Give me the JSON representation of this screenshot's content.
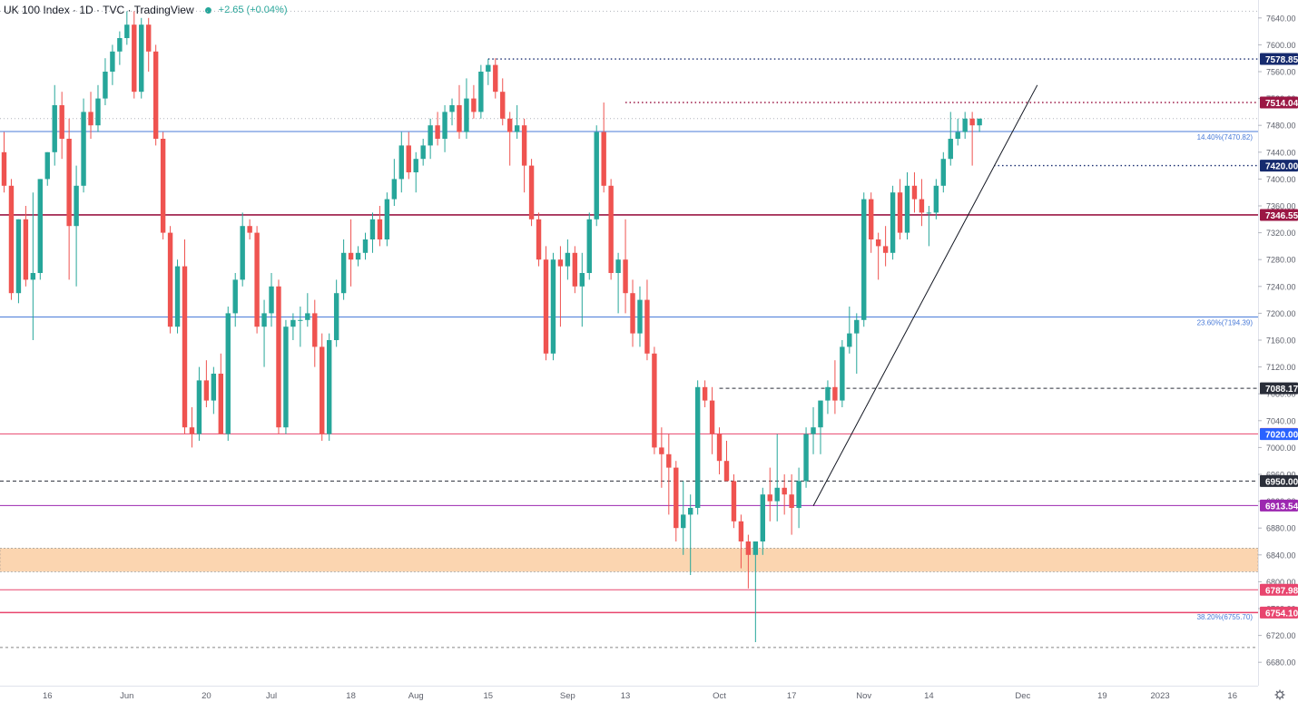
{
  "header": {
    "title": "UK 100 Index · 1D · TVC · TradingView",
    "change": "+2.65 (+0.04%)"
  },
  "colors": {
    "up": "#26a69a",
    "down": "#ef5350",
    "fib": "#4a7bd8",
    "crimson": "#9b1744",
    "navy": "#162b6e",
    "dark": "#2a2e39",
    "pink": "#e8456e",
    "blue_label": "#2962ff",
    "purple": "#9c27b0",
    "orange_zone": "#fbd5b0"
  },
  "chart_data": {
    "type": "candlestick",
    "title": "UK 100 Index · 1D · TVC · TradingView",
    "ylim": [
      6660,
      7660
    ],
    "y_ticks": [
      "7640.00",
      "7600.00",
      "7560.00",
      "7520.00",
      "7480.00",
      "7440.00",
      "7400.00",
      "7360.00",
      "7320.00",
      "7280.00",
      "7240.00",
      "7200.00",
      "7160.00",
      "7120.00",
      "7080.00",
      "7040.00",
      "7000.00",
      "6960.00",
      "6920.00",
      "6880.00",
      "6840.00",
      "6800.00",
      "6760.00",
      "6720.00",
      "6680.00"
    ],
    "x_ticks": [
      {
        "label": "16",
        "i": 6
      },
      {
        "label": "Jun",
        "i": 17
      },
      {
        "label": "20",
        "i": 28
      },
      {
        "label": "Jul",
        "i": 37
      },
      {
        "label": "18",
        "i": 48
      },
      {
        "label": "Aug",
        "i": 57
      },
      {
        "label": "15",
        "i": 67
      },
      {
        "label": "Sep",
        "i": 78
      },
      {
        "label": "13",
        "i": 86
      },
      {
        "label": "Oct",
        "i": 99
      },
      {
        "label": "17",
        "i": 109
      },
      {
        "label": "Nov",
        "i": 119
      },
      {
        "label": "14",
        "i": 128
      },
      {
        "label": "Dec",
        "i": 141
      },
      {
        "label": "19",
        "i": 152
      },
      {
        "label": "2023",
        "i": 160
      },
      {
        "label": "16",
        "i": 170
      }
    ],
    "candles": [
      [
        7440,
        7470,
        7380,
        7390
      ],
      [
        7390,
        7400,
        7220,
        7230
      ],
      [
        7230,
        7340,
        7215,
        7340
      ],
      [
        7340,
        7360,
        7240,
        7250
      ],
      [
        7250,
        7380,
        7160,
        7260
      ],
      [
        7260,
        7400,
        7250,
        7400
      ],
      [
        7400,
        7440,
        7390,
        7440
      ],
      [
        7440,
        7540,
        7420,
        7510
      ],
      [
        7510,
        7530,
        7430,
        7460
      ],
      [
        7460,
        7490,
        7250,
        7330
      ],
      [
        7330,
        7420,
        7240,
        7390
      ],
      [
        7390,
        7520,
        7380,
        7500
      ],
      [
        7500,
        7530,
        7460,
        7480
      ],
      [
        7480,
        7540,
        7470,
        7520
      ],
      [
        7520,
        7580,
        7510,
        7560
      ],
      [
        7560,
        7600,
        7540,
        7590
      ],
      [
        7590,
        7620,
        7570,
        7610
      ],
      [
        7610,
        7650,
        7600,
        7630
      ],
      [
        7630,
        7650,
        7520,
        7530
      ],
      [
        7530,
        7640,
        7520,
        7630
      ],
      [
        7630,
        7640,
        7560,
        7590
      ],
      [
        7590,
        7600,
        7450,
        7460
      ],
      [
        7460,
        7470,
        7310,
        7320
      ],
      [
        7320,
        7330,
        7170,
        7180
      ],
      [
        7180,
        7280,
        7170,
        7270
      ],
      [
        7270,
        7310,
        7020,
        7030
      ],
      [
        7030,
        7060,
        7000,
        7020
      ],
      [
        7020,
        7120,
        7010,
        7100
      ],
      [
        7100,
        7130,
        7060,
        7070
      ],
      [
        7070,
        7120,
        7050,
        7110
      ],
      [
        7110,
        7140,
        7020,
        7020
      ],
      [
        7020,
        7210,
        7010,
        7200
      ],
      [
        7200,
        7260,
        7180,
        7250
      ],
      [
        7250,
        7350,
        7240,
        7330
      ],
      [
        7330,
        7340,
        7310,
        7320
      ],
      [
        7320,
        7330,
        7170,
        7180
      ],
      [
        7180,
        7220,
        7120,
        7200
      ],
      [
        7200,
        7260,
        7180,
        7240
      ],
      [
        7240,
        7250,
        7020,
        7030
      ],
      [
        7030,
        7190,
        7020,
        7180
      ],
      [
        7180,
        7200,
        7160,
        7190
      ],
      [
        7190,
        7210,
        7150,
        7190
      ],
      [
        7190,
        7230,
        7180,
        7200
      ],
      [
        7200,
        7220,
        7120,
        7150
      ],
      [
        7150,
        7170,
        7010,
        7020
      ],
      [
        7020,
        7170,
        7010,
        7160
      ],
      [
        7160,
        7250,
        7150,
        7230
      ],
      [
        7230,
        7310,
        7220,
        7290
      ],
      [
        7290,
        7340,
        7240,
        7280
      ],
      [
        7280,
        7300,
        7270,
        7290
      ],
      [
        7290,
        7320,
        7280,
        7310
      ],
      [
        7310,
        7350,
        7290,
        7340
      ],
      [
        7340,
        7360,
        7300,
        7310
      ],
      [
        7310,
        7380,
        7300,
        7370
      ],
      [
        7370,
        7430,
        7360,
        7400
      ],
      [
        7400,
        7470,
        7380,
        7450
      ],
      [
        7450,
        7470,
        7400,
        7410
      ],
      [
        7410,
        7440,
        7380,
        7430
      ],
      [
        7430,
        7460,
        7420,
        7450
      ],
      [
        7450,
        7490,
        7430,
        7480
      ],
      [
        7480,
        7500,
        7450,
        7460
      ],
      [
        7460,
        7510,
        7440,
        7500
      ],
      [
        7500,
        7520,
        7480,
        7510
      ],
      [
        7510,
        7540,
        7460,
        7470
      ],
      [
        7470,
        7550,
        7460,
        7520
      ],
      [
        7520,
        7540,
        7490,
        7500
      ],
      [
        7500,
        7570,
        7490,
        7560
      ],
      [
        7560,
        7579,
        7540,
        7570
      ],
      [
        7570,
        7580,
        7520,
        7530
      ],
      [
        7530,
        7550,
        7480,
        7490
      ],
      [
        7490,
        7500,
        7420,
        7470
      ],
      [
        7470,
        7510,
        7460,
        7480
      ],
      [
        7480,
        7490,
        7380,
        7420
      ],
      [
        7420,
        7430,
        7330,
        7340
      ],
      [
        7340,
        7350,
        7270,
        7280
      ],
      [
        7280,
        7300,
        7130,
        7140
      ],
      [
        7140,
        7290,
        7130,
        7280
      ],
      [
        7280,
        7300,
        7180,
        7270
      ],
      [
        7270,
        7310,
        7250,
        7290
      ],
      [
        7290,
        7300,
        7230,
        7240
      ],
      [
        7240,
        7290,
        7180,
        7260
      ],
      [
        7260,
        7350,
        7250,
        7340
      ],
      [
        7340,
        7480,
        7330,
        7470
      ],
      [
        7470,
        7514,
        7380,
        7390
      ],
      [
        7390,
        7400,
        7250,
        7260
      ],
      [
        7260,
        7290,
        7200,
        7280
      ],
      [
        7280,
        7340,
        7200,
        7230
      ],
      [
        7230,
        7250,
        7150,
        7170
      ],
      [
        7170,
        7240,
        7150,
        7220
      ],
      [
        7220,
        7250,
        7130,
        7140
      ],
      [
        7140,
        7150,
        6990,
        7000
      ],
      [
        7000,
        7030,
        6940,
        6990
      ],
      [
        6990,
        7020,
        6900,
        6970
      ],
      [
        6970,
        6980,
        6860,
        6880
      ],
      [
        6880,
        6950,
        6840,
        6900
      ],
      [
        6900,
        6930,
        6810,
        6910
      ],
      [
        6910,
        7100,
        6900,
        7090
      ],
      [
        7090,
        7100,
        7060,
        7070
      ],
      [
        7070,
        7090,
        6990,
        7020
      ],
      [
        7020,
        7030,
        6960,
        6980
      ],
      [
        6980,
        7010,
        6950,
        6950
      ],
      [
        6950,
        6960,
        6880,
        6890
      ],
      [
        6890,
        6900,
        6820,
        6860
      ],
      [
        6860,
        6870,
        6790,
        6840
      ],
      [
        6840,
        6860,
        6710,
        6860
      ],
      [
        6860,
        6940,
        6840,
        6930
      ],
      [
        6930,
        6970,
        6890,
        6920
      ],
      [
        6920,
        7020,
        6890,
        6940
      ],
      [
        6940,
        6960,
        6900,
        6930
      ],
      [
        6930,
        6960,
        6870,
        6910
      ],
      [
        6910,
        6970,
        6880,
        6950
      ],
      [
        6950,
        7030,
        6940,
        7020
      ],
      [
        7020,
        7060,
        6990,
        7030
      ],
      [
        7030,
        7070,
        6990,
        7070
      ],
      [
        7070,
        7100,
        7050,
        7090
      ],
      [
        7090,
        7130,
        7050,
        7070
      ],
      [
        7070,
        7160,
        7060,
        7150
      ],
      [
        7150,
        7210,
        7140,
        7170
      ],
      [
        7170,
        7200,
        7110,
        7190
      ],
      [
        7190,
        7380,
        7180,
        7370
      ],
      [
        7370,
        7380,
        7290,
        7310
      ],
      [
        7310,
        7320,
        7250,
        7300
      ],
      [
        7300,
        7330,
        7270,
        7290
      ],
      [
        7290,
        7390,
        7280,
        7380
      ],
      [
        7380,
        7400,
        7310,
        7320
      ],
      [
        7320,
        7410,
        7310,
        7390
      ],
      [
        7390,
        7410,
        7350,
        7370
      ],
      [
        7370,
        7400,
        7330,
        7350
      ],
      [
        7350,
        7360,
        7300,
        7350
      ],
      [
        7350,
        7400,
        7340,
        7390
      ],
      [
        7390,
        7440,
        7380,
        7430
      ],
      [
        7430,
        7500,
        7420,
        7460
      ],
      [
        7460,
        7490,
        7450,
        7470
      ],
      [
        7470,
        7500,
        7460,
        7490
      ],
      [
        7490,
        7500,
        7420,
        7480
      ],
      [
        7480,
        7490,
        7470,
        7490
      ]
    ],
    "horizontal_levels": [
      {
        "label": "7578.85",
        "value": 7578.85,
        "style": "dotted",
        "color": "navy",
        "start_index": 67
      },
      {
        "label": "7514.04",
        "value": 7514.04,
        "style": "dotted",
        "color": "crimson",
        "start_index": 86
      },
      {
        "label": "7470.82",
        "value": 7470.82,
        "style": "solid",
        "color": "fib",
        "fib_text": "14.40%(7470.82)"
      },
      {
        "label": "7420.00",
        "value": 7420.0,
        "style": "dotted",
        "color": "navy",
        "start_index": 137
      },
      {
        "label": "7346.55",
        "value": 7346.55,
        "style": "solid-thick",
        "color": "crimson"
      },
      {
        "label": "7194.39",
        "value": 7194.39,
        "style": "solid",
        "color": "fib",
        "fib_text": "23.60%(7194.39)"
      },
      {
        "label": "7088.17",
        "value": 7088.17,
        "style": "dashed",
        "color": "dark",
        "start_index": 99
      },
      {
        "label": "7020.22",
        "value": 7020.22,
        "style": "solid",
        "color": "pink"
      },
      {
        "label": "7020.00",
        "value": 7020.0,
        "style": "none",
        "color": "blue_label"
      },
      {
        "label": "6950.00",
        "value": 6950.0,
        "style": "dashed",
        "color": "dark"
      },
      {
        "label": "6913.54",
        "value": 6913.54,
        "style": "solid",
        "color": "purple"
      },
      {
        "label": "6787.98",
        "value": 6787.98,
        "style": "solid",
        "color": "pink"
      },
      {
        "label": "6754.10",
        "value": 6754.1,
        "style": "solid-thick",
        "color": "pink"
      },
      {
        "label": "6755.70",
        "value": 6755.7,
        "style": "none",
        "color": "fib",
        "fib_text": "38.20%(6755.70)"
      }
    ],
    "zone": {
      "from": 6815,
      "to": 6850
    },
    "trendline": [
      {
        "i": 112,
        "v": 6913
      },
      {
        "i": 143,
        "v": 7540
      }
    ],
    "grid": false
  }
}
